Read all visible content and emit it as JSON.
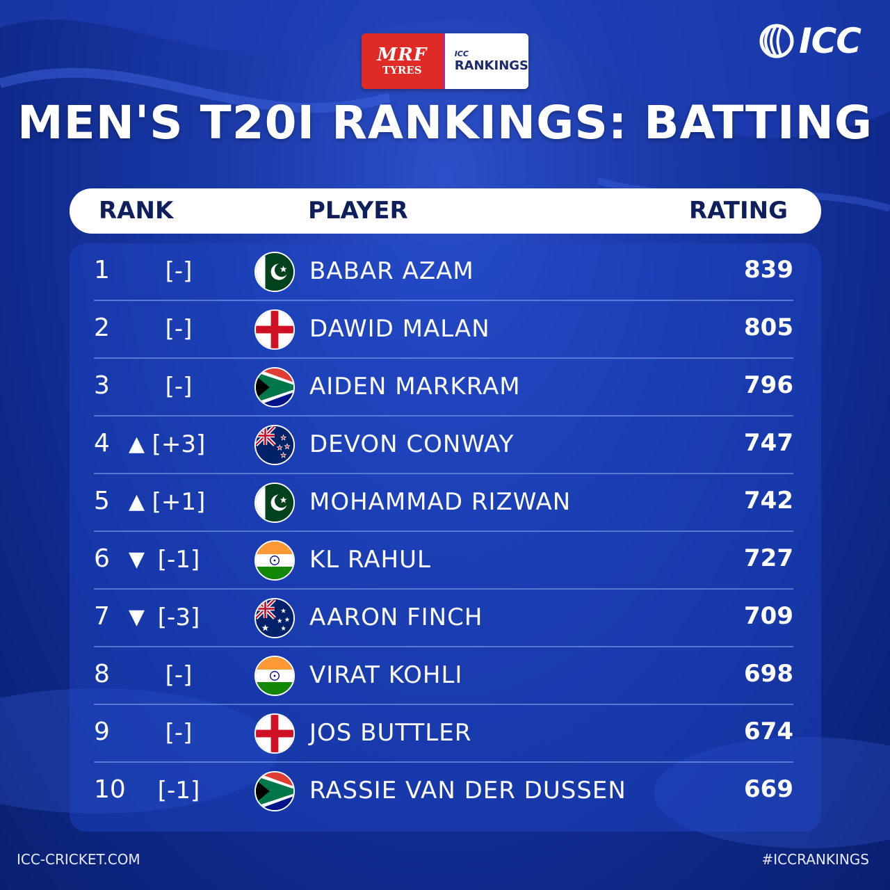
{
  "sponsor": {
    "mrf_top": "MRF",
    "mrf_bottom": "TYRES",
    "icc_small": "ICC",
    "rankings_label": "RANKINGS"
  },
  "brand": {
    "icc_text": "ICC"
  },
  "title": "MEN'S T20I RANKINGS: BATTING",
  "headers": {
    "rank": "RANK",
    "player": "PLAYER",
    "rating": "RATING"
  },
  "rows": [
    {
      "rank": "1",
      "arrow": "",
      "move": "[-]",
      "flag": "pakistan",
      "name": "BABAR AZAM",
      "rating": "839"
    },
    {
      "rank": "2",
      "arrow": "",
      "move": "[-]",
      "flag": "england",
      "name": "DAWID MALAN",
      "rating": "805"
    },
    {
      "rank": "3",
      "arrow": "",
      "move": "[-]",
      "flag": "south-africa",
      "name": "AIDEN MARKRAM",
      "rating": "796"
    },
    {
      "rank": "4",
      "arrow": "▲",
      "move": "[+3]",
      "flag": "new-zealand",
      "name": "DEVON CONWAY",
      "rating": "747"
    },
    {
      "rank": "5",
      "arrow": "▲",
      "move": "[+1]",
      "flag": "pakistan",
      "name": "MOHAMMAD RIZWAN",
      "rating": "742"
    },
    {
      "rank": "6",
      "arrow": "▼",
      "move": "[-1]",
      "flag": "india",
      "name": "KL RAHUL",
      "rating": "727"
    },
    {
      "rank": "7",
      "arrow": "▼",
      "move": "[-3]",
      "flag": "australia",
      "name": "AARON FINCH",
      "rating": "709"
    },
    {
      "rank": "8",
      "arrow": "",
      "move": "[-]",
      "flag": "india",
      "name": "VIRAT KOHLI",
      "rating": "698"
    },
    {
      "rank": "9",
      "arrow": "",
      "move": "[-]",
      "flag": "england",
      "name": "JOS BUTTLER",
      "rating": "674"
    },
    {
      "rank": "10",
      "arrow": "",
      "move": "[-1]",
      "flag": "south-africa",
      "name": "RASSIE VAN DER DUSSEN",
      "rating": "669"
    }
  ],
  "footer": {
    "left": "ICC-CRICKET.COM",
    "right": "#ICCRANKINGS"
  },
  "colors": {
    "background": "#1a3aa8",
    "panel": "#1e46c8",
    "header_text": "#0f1f5c",
    "mrf_red": "#e02a26"
  }
}
